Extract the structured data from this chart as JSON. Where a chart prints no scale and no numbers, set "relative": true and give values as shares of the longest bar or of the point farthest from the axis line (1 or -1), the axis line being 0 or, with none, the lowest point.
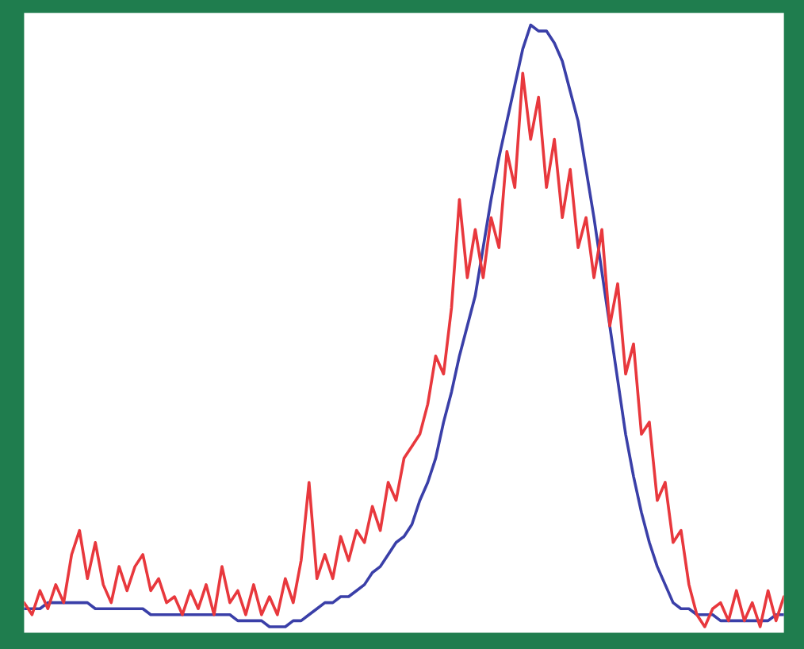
{
  "chart_data": {
    "type": "line",
    "relative": true,
    "categories": [
      null,
      null,
      null,
      null,
      null,
      null,
      null,
      null,
      null,
      null,
      null,
      null,
      null,
      null,
      null,
      null,
      null,
      null,
      null,
      null,
      null,
      null,
      null,
      null,
      null,
      null,
      null,
      null,
      null,
      null,
      null,
      null,
      null,
      null,
      null,
      null,
      null,
      null,
      null,
      null,
      null,
      null,
      null,
      null,
      null,
      null,
      null,
      null,
      null,
      null,
      null,
      null,
      null,
      null,
      null,
      null,
      null,
      null,
      null,
      null,
      null,
      null,
      null,
      null,
      null,
      null,
      null,
      null,
      null,
      null,
      null,
      null,
      null,
      null,
      null,
      null,
      null,
      null,
      null,
      null,
      null,
      null,
      null,
      null,
      null,
      null,
      null,
      null,
      null,
      null,
      null,
      null,
      null,
      null,
      null,
      null,
      null
    ],
    "series": [
      {
        "color": "#3a3fa8",
        "values": [
          0.03,
          0.03,
          0.03,
          0.04,
          0.04,
          0.04,
          0.04,
          0.04,
          0.04,
          0.03,
          0.03,
          0.03,
          0.03,
          0.03,
          0.03,
          0.03,
          0.02,
          0.02,
          0.02,
          0.02,
          0.02,
          0.02,
          0.02,
          0.02,
          0.02,
          0.02,
          0.02,
          0.01,
          0.01,
          0.01,
          0.01,
          0,
          0,
          0,
          0.01,
          0.01,
          0.02,
          0.03,
          0.04,
          0.04,
          0.05,
          0.05,
          0.06,
          0.07,
          0.09,
          0.1,
          0.12,
          0.14,
          0.15,
          0.17,
          0.21,
          0.24,
          0.28,
          0.34,
          0.39,
          0.45,
          0.5,
          0.55,
          0.63,
          0.71,
          0.78,
          0.84,
          0.9,
          0.96,
          1,
          0.99,
          0.99,
          0.97,
          0.94,
          0.89,
          0.84,
          0.76,
          0.68,
          0.59,
          0.5,
          0.41,
          0.32,
          0.25,
          0.19,
          0.14,
          0.1,
          0.07,
          0.04,
          0.03,
          0.03,
          0.02,
          0.02,
          0.02,
          0.01,
          0.01,
          0.01,
          0.01,
          0.01,
          0.01,
          0.01,
          0.02,
          0.02
        ]
      },
      {
        "color": "#e8383d",
        "values": [
          0.04,
          0.02,
          0.06,
          0.03,
          0.07,
          0.04,
          0.12,
          0.16,
          0.08,
          0.14,
          0.07,
          0.04,
          0.1,
          0.06,
          0.1,
          0.12,
          0.06,
          0.08,
          0.04,
          0.05,
          0.02,
          0.06,
          0.03,
          0.07,
          0.02,
          0.1,
          0.04,
          0.06,
          0.02,
          0.07,
          0.02,
          0.05,
          0.02,
          0.08,
          0.04,
          0.11,
          0.24,
          0.08,
          0.12,
          0.08,
          0.15,
          0.11,
          0.16,
          0.14,
          0.2,
          0.16,
          0.24,
          0.21,
          0.28,
          0.3,
          0.32,
          0.37,
          0.45,
          0.42,
          0.53,
          0.71,
          0.58,
          0.66,
          0.58,
          0.68,
          0.63,
          0.79,
          0.73,
          0.92,
          0.81,
          0.88,
          0.73,
          0.81,
          0.68,
          0.76,
          0.63,
          0.68,
          0.58,
          0.66,
          0.5,
          0.57,
          0.42,
          0.47,
          0.32,
          0.34,
          0.21,
          0.24,
          0.14,
          0.16,
          0.07,
          0.02,
          0,
          0.03,
          0.04,
          0.01,
          0.06,
          0.01,
          0.04,
          0,
          0.06,
          0.01,
          0.05
        ]
      }
    ]
  }
}
